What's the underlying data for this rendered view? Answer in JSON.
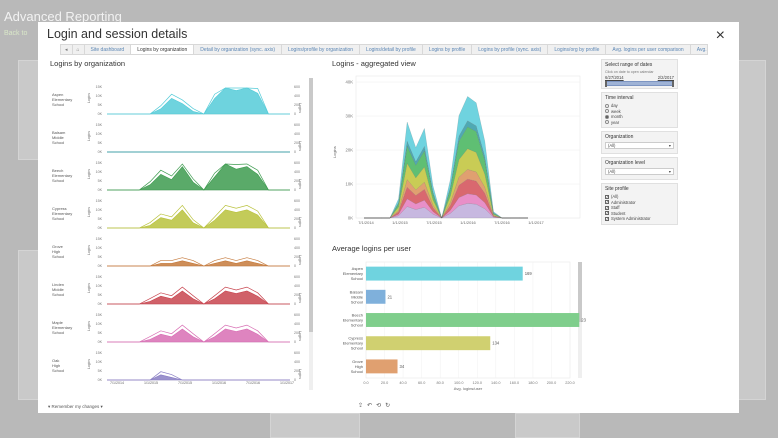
{
  "background": {
    "title": "Advanced Reporting",
    "back_label": "Back to"
  },
  "modal": {
    "title": "Login and session details",
    "close_glyph": "×"
  },
  "tabs": {
    "nav_left": "◂",
    "nav_home": "⌂",
    "nav_right": "▸",
    "items": [
      {
        "label": "Site dashboard",
        "active": false
      },
      {
        "label": "Logins by organization",
        "active": true
      },
      {
        "label": "Detail by organization (sync. axis)",
        "active": false
      },
      {
        "label": "Logins/profile by organization",
        "active": false
      },
      {
        "label": "Logins/detail by profile",
        "active": false
      },
      {
        "label": "Logins by profile",
        "active": false
      },
      {
        "label": "Logins by profile (sync. axis)",
        "active": false
      },
      {
        "label": "Logins/org by profile",
        "active": false
      },
      {
        "label": "Avg. logins per user comparison",
        "active": false
      },
      {
        "label": "Avg.",
        "active": false
      }
    ]
  },
  "logins_by_org": {
    "title": "Logins by organization",
    "left_axis_label": "Logins",
    "right_axis_label": "Logins",
    "x_ticks": [
      "7/1/2014",
      "1/1/2015",
      "7/1/2015",
      "1/1/2016",
      "7/1/2016",
      "1/1/2017"
    ],
    "orgs": [
      {
        "name": "Aspen Elementary School",
        "left_ticks": [
          "15K",
          "10K",
          "5K",
          "0K"
        ],
        "right_ticks": [
          "600",
          "400",
          "200",
          "0"
        ],
        "color": "#55cbd8"
      },
      {
        "name": "Balsam Middle School",
        "left_ticks": [
          "15K",
          "10K",
          "5K",
          "0K"
        ],
        "right_ticks": [
          "600",
          "400",
          "200",
          "0"
        ],
        "color": "#2e9aa3"
      },
      {
        "name": "Beech Elementary School",
        "left_ticks": [
          "15K",
          "10K",
          "5K",
          "0K"
        ],
        "right_ticks": [
          "600",
          "400",
          "200",
          "0"
        ],
        "color": "#3d9b4f"
      },
      {
        "name": "Cypress Elementary School",
        "left_ticks": [
          "15K",
          "10K",
          "5K",
          "0K"
        ],
        "right_ticks": [
          "600",
          "400",
          "200",
          "0"
        ],
        "color": "#b9c23c"
      },
      {
        "name": "Grove High School",
        "left_ticks": [
          "15K",
          "10K",
          "5K",
          "0K"
        ],
        "right_ticks": [
          "600",
          "400",
          "200",
          "0"
        ],
        "color": "#c57a3c"
      },
      {
        "name": "Linden Middle School",
        "left_ticks": [
          "15K",
          "10K",
          "5K",
          "0K"
        ],
        "right_ticks": [
          "600",
          "400",
          "200",
          "0"
        ],
        "color": "#c8454f"
      },
      {
        "name": "Maple Elementary School",
        "left_ticks": [
          "15K",
          "10K",
          "5K",
          "0K"
        ],
        "right_ticks": [
          "600",
          "400",
          "200",
          "0"
        ],
        "color": "#d86fb4"
      },
      {
        "name": "Oak High School",
        "left_ticks": [
          "15K",
          "10K",
          "5K",
          "0K"
        ],
        "right_ticks": [
          "600",
          "400",
          "200",
          "0"
        ],
        "color": "#8a7fc4"
      }
    ]
  },
  "aggregated": {
    "title": "Logins - aggregated view",
    "y_label": "Logins",
    "y_ticks": [
      "40K",
      "30K",
      "20K",
      "10K",
      "0K"
    ],
    "x_ticks": [
      "7/1/2014",
      "1/1/2015",
      "7/1/2015",
      "1/1/2016",
      "7/1/2016",
      "1/1/2017"
    ]
  },
  "avg_logins": {
    "title": "Average logins per user",
    "x_label": "Avg. logins/user",
    "x_ticks": [
      "0.0",
      "20.0",
      "40.0",
      "60.0",
      "80.0",
      "100.0",
      "120.0",
      "140.0",
      "160.0",
      "180.0",
      "200.0",
      "220.0"
    ]
  },
  "chart_data": [
    {
      "type": "area",
      "title": "Logins - aggregated view",
      "ylabel": "Logins",
      "ylim": [
        0,
        45000
      ],
      "x": [
        "7/1/2014",
        "1/1/2015",
        "7/1/2015",
        "1/1/2016",
        "7/1/2016",
        "1/1/2017"
      ],
      "stacked": true
    },
    {
      "type": "bar",
      "title": "Average logins per user",
      "xlabel": "Avg. logins/user",
      "orientation": "horizontal",
      "xlim": [
        0,
        220
      ],
      "categories": [
        "Aspen Elementary School",
        "Balsam Middle School",
        "Beech Elementary School",
        "Cypress Elementary School",
        "Grove High School"
      ],
      "values": [
        169,
        21,
        230,
        134,
        34
      ],
      "colors": [
        "#6fd3df",
        "#7fb0db",
        "#7fce8c",
        "#d0d070",
        "#e0a070"
      ]
    }
  ],
  "sidebar": {
    "date_range": {
      "title": "Select range of dates",
      "hint": "Click on date to open calendar",
      "start": "6/27/2014",
      "end": "2/2/2017"
    },
    "time_interval": {
      "title": "Time interval",
      "options": [
        {
          "label": "day",
          "selected": false
        },
        {
          "label": "week",
          "selected": false
        },
        {
          "label": "month",
          "selected": true
        },
        {
          "label": "year",
          "selected": false
        }
      ]
    },
    "organization": {
      "title": "Organization",
      "value": "(All)"
    },
    "org_level": {
      "title": "Organization level",
      "value": "(All)"
    },
    "site_profile": {
      "title": "Site profile",
      "options": [
        {
          "label": "(All)",
          "checked": true
        },
        {
          "label": "Administrator",
          "checked": true
        },
        {
          "label": "Staff",
          "checked": true
        },
        {
          "label": "Student",
          "checked": true
        },
        {
          "label": "System Administrator",
          "checked": true
        }
      ]
    }
  },
  "footer": {
    "remember_label": "Remember my changes",
    "icons": [
      "share-icon",
      "undo-icon",
      "revert-icon",
      "refresh-icon"
    ]
  }
}
